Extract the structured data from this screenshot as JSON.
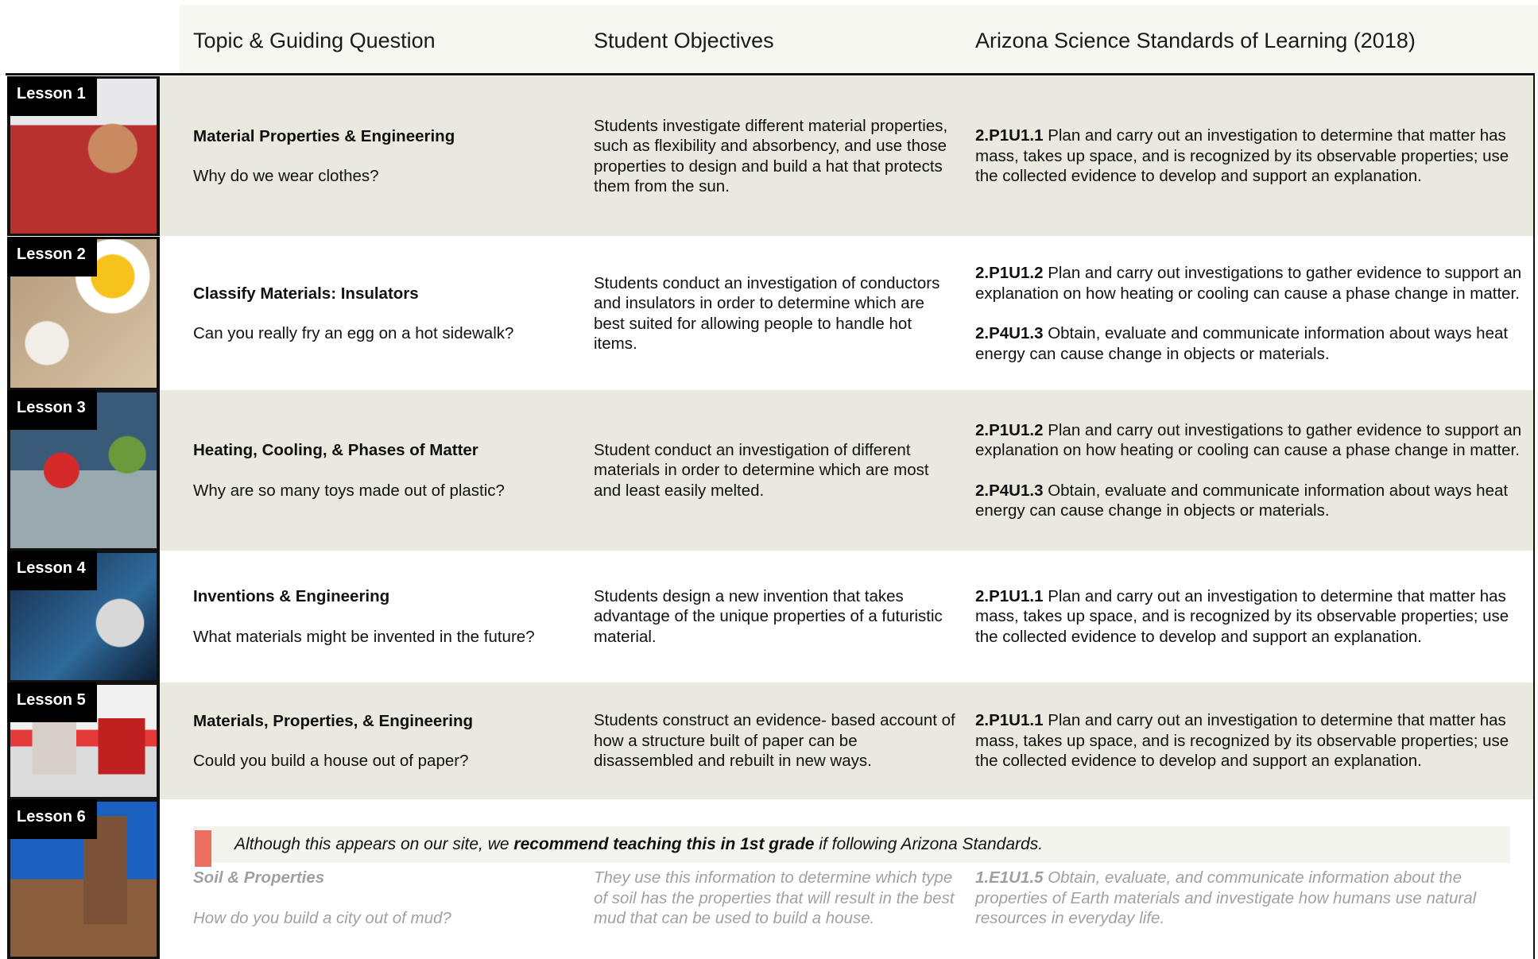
{
  "header": {
    "columns": [
      "Topic & Guiding Question",
      "Student Objectives",
      "Arizona Science Standards of Learning (2018)"
    ]
  },
  "lessons": [
    {
      "label": "Lesson 1",
      "topic": "Material Properties & Engineering",
      "question": "Why do we wear clothes?",
      "objective": "Students investigate different material properties, such as flexibility and absorbency, and use those properties to design and build a hat that protects them from the sun.",
      "standards": [
        {
          "code": "2.P1U1.1",
          "text": "Plan and carry out an investigation to determine that matter has mass, takes up space, and is recognized by its observable properties; use the collected evidence to develop and support an explanation."
        }
      ]
    },
    {
      "label": "Lesson 2",
      "topic": "Classify Materials: Insulators",
      "question": "Can you really fry an egg on a hot sidewalk?",
      "objective": "Students conduct an investigation of conductors and insulators in order to determine which are best suited for allowing people to handle hot items.",
      "standards": [
        {
          "code": "2.P1U1.2",
          "text": "Plan and carry out investigations to gather evidence to support an explanation on how heating or cooling can cause a phase change in matter."
        },
        {
          "code": "2.P4U1.3",
          "text": "Obtain, evaluate and communicate information about ways heat energy can cause change in objects or materials."
        }
      ]
    },
    {
      "label": "Lesson 3",
      "topic": "Heating, Cooling, & Phases of Matter",
      "question": "Why are so many toys made out of plastic?",
      "objective": "Student conduct an investigation of different materials in order to determine which are most and least easily melted.",
      "standards": [
        {
          "code": "2.P1U1.2",
          "text": "Plan and carry out investigations to gather evidence to support an explanation on how heating or cooling can cause a phase change in matter."
        },
        {
          "code": "2.P4U1.3",
          "text": "Obtain, evaluate and communicate information about ways heat energy can cause change in objects or materials."
        }
      ]
    },
    {
      "label": "Lesson 4",
      "topic": "Inventions & Engineering",
      "question": "What materials might be invented in the future?",
      "objective": "Students design a new invention that takes advantage of the unique properties of a futuristic material.",
      "standards": [
        {
          "code": "2.P1U1.1",
          "text": "Plan and carry out an investigation to determine that matter has mass, takes up space, and is recognized by its observable properties; use the collected evidence to develop and support an explanation."
        }
      ]
    },
    {
      "label": "Lesson 5",
      "topic": "Materials, Properties, & Engineering",
      "question": "Could you build a house out of paper?",
      "objective": "Students construct an evidence- based account of how a structure built of paper can be disassembled and rebuilt in new ways.",
      "standards": [
        {
          "code": "2.P1U1.1",
          "text": "Plan and carry out an investigation to determine that matter has mass, takes up space, and is recognized by its observable properties; use the collected evidence to develop and support an explanation."
        }
      ]
    },
    {
      "label": "Lesson 6",
      "topic": "Soil & Properties",
      "question": "How do you build a city out of mud?",
      "objective": "They use this information to determine which type of soil has the properties that will result in the best mud that can be used to build a house.",
      "standards": [
        {
          "code": "1.E1U1.5",
          "text": "Obtain, evaluate, and communicate information about the properties of Earth materials and investigate how humans use natural resources in everyday life."
        }
      ],
      "note": {
        "before": "Although this appears on our site, we",
        "emphasis": "recommend teaching this in 1st grade",
        "after": "if following Arizona Standards."
      }
    }
  ]
}
